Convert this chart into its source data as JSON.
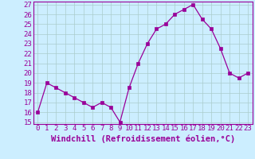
{
  "x": [
    0,
    1,
    2,
    3,
    4,
    5,
    6,
    7,
    8,
    9,
    10,
    11,
    12,
    13,
    14,
    15,
    16,
    17,
    18,
    19,
    20,
    21,
    22,
    23
  ],
  "y": [
    16,
    19,
    18.5,
    18,
    17.5,
    17,
    16.5,
    17,
    16.5,
    15,
    18.5,
    21,
    23,
    24.5,
    25,
    26,
    26.5,
    27,
    25.5,
    24.5,
    22.5,
    20,
    19.5,
    20
  ],
  "line_color": "#990099",
  "marker_color": "#990099",
  "bg_color": "#cceeff",
  "grid_color": "#aacccc",
  "xlabel": "Windchill (Refroidissement éolien,°C)",
  "xlabel_color": "#990099",
  "ylim": [
    14.8,
    27.3
  ],
  "yticks": [
    15,
    16,
    17,
    18,
    19,
    20,
    21,
    22,
    23,
    24,
    25,
    26,
    27
  ],
  "xticks": [
    0,
    1,
    2,
    3,
    4,
    5,
    6,
    7,
    8,
    9,
    10,
    11,
    12,
    13,
    14,
    15,
    16,
    17,
    18,
    19,
    20,
    21,
    22,
    23
  ],
  "tick_fontsize": 6.5,
  "xlabel_fontsize": 7.5
}
